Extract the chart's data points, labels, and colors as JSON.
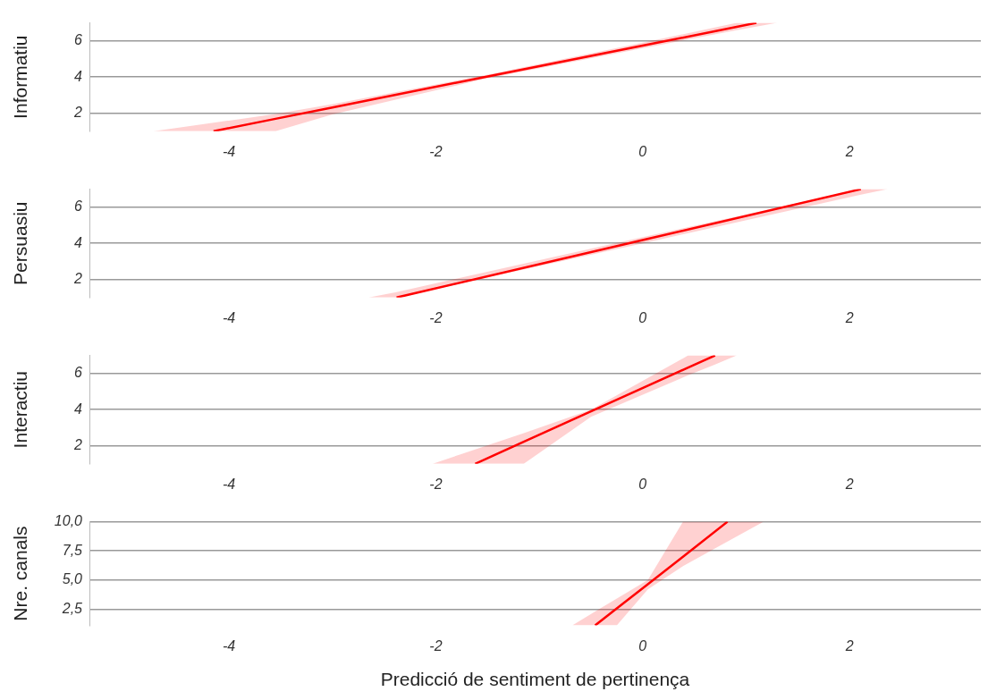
{
  "chart_data": [
    {
      "type": "line",
      "ylabel": "Informatiu",
      "xlim": [
        -5.35,
        3.27
      ],
      "xticks": [
        -4,
        -2,
        0,
        2
      ],
      "ylim": [
        1,
        7
      ],
      "yticks": [
        2,
        4,
        6
      ],
      "grid": "y",
      "series": [
        {
          "color": "#ff0000",
          "x": [
            -4.73,
            -4.15,
            -3.55,
            -3.0,
            -1.53,
            0,
            0.91,
            1.1,
            1.3
          ],
          "values": [
            null,
            1,
            1.69,
            2.31,
            4.0,
            5.74,
            6.78,
            7,
            null
          ],
          "lower": [
            1,
            1,
            1,
            1.93,
            3.9,
            5.6,
            6.6,
            6.8,
            7
          ],
          "upper": [
            1,
            1.47,
            1.96,
            2.5,
            4.1,
            5.9,
            7,
            7,
            7
          ]
        }
      ]
    },
    {
      "type": "line",
      "ylabel": "Persuasiu",
      "xlim": [
        -5.35,
        3.27
      ],
      "xticks": [
        -4,
        -2,
        0,
        2
      ],
      "ylim": [
        1,
        7
      ],
      "yticks": [
        2,
        4,
        6
      ],
      "grid": "y",
      "series": [
        {
          "color": "#ff0000",
          "x": [
            -2.65,
            -2.38,
            0,
            2.11,
            2.37
          ],
          "values": [
            null,
            1,
            4.18,
            7,
            null
          ],
          "lower": [
            1,
            1,
            4.0,
            6.7,
            7
          ],
          "upper": [
            1,
            1.3,
            4.35,
            7,
            7
          ]
        }
      ]
    },
    {
      "type": "line",
      "ylabel": "Interactiu",
      "xlim": [
        -5.35,
        3.27
      ],
      "xticks": [
        -4,
        -2,
        0,
        2
      ],
      "ylim": [
        1,
        7
      ],
      "yticks": [
        2,
        4,
        6
      ],
      "grid": "y",
      "series": [
        {
          "color": "#ff0000",
          "x": [
            -2.03,
            -1.62,
            -1.15,
            -0.5,
            0.44,
            0.7,
            0.91
          ],
          "values": [
            null,
            1,
            2.22,
            3.9,
            6.33,
            7,
            null
          ],
          "lower": [
            1,
            1,
            1,
            3.6,
            5.9,
            6.5,
            7
          ],
          "upper": [
            1,
            1.8,
            2.7,
            4.0,
            7,
            7,
            7
          ]
        }
      ]
    },
    {
      "type": "line",
      "ylabel": "Nre. canals",
      "xlabel": "Predicció de sentiment de pertinença",
      "xlim": [
        -5.35,
        3.27
      ],
      "xticks": [
        -4,
        -2,
        0,
        2
      ],
      "ylim": [
        1.1,
        10
      ],
      "yticks": [
        {
          "value": 2.5,
          "label": "2,5"
        },
        {
          "value": 5,
          "label": "5,0"
        },
        {
          "value": 7.5,
          "label": "7,5"
        },
        {
          "value": 10,
          "label": "10,0"
        }
      ],
      "grid": "y",
      "series": [
        {
          "color": "#ff0000",
          "x": [
            -0.68,
            -0.46,
            -0.25,
            0.05,
            0.39,
            0.82,
            1.17
          ],
          "values": [
            null,
            1.1,
            2.56,
            4.64,
            7.0,
            10,
            null
          ],
          "lower": [
            1.1,
            1.1,
            1.1,
            4.2,
            6.2,
            8.3,
            10
          ],
          "upper": [
            1.1,
            2.3,
            3.4,
            5.0,
            10,
            10,
            10
          ]
        }
      ]
    }
  ]
}
